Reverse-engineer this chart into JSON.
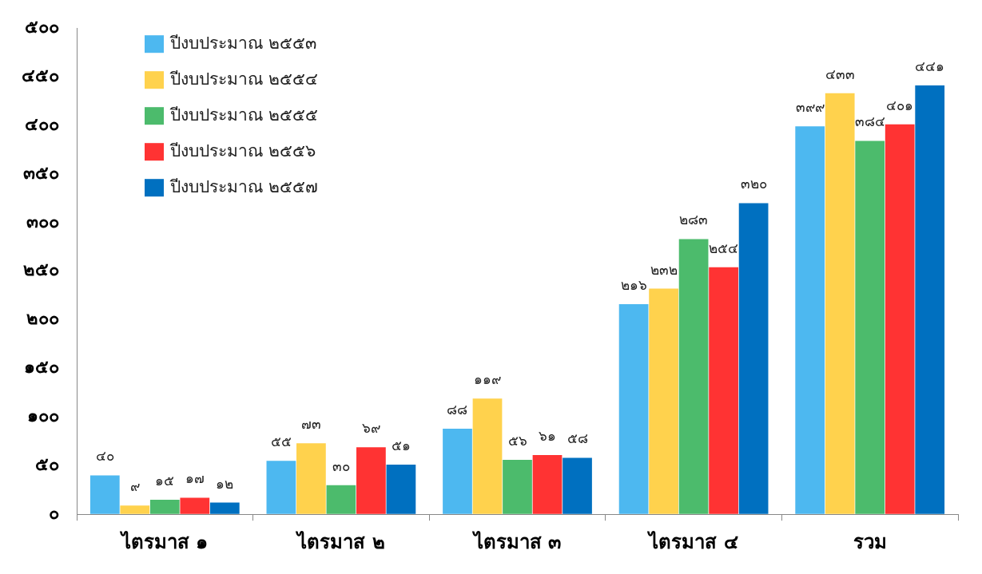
{
  "chart_data": {
    "type": "bar",
    "categories": [
      "ไตรมาส ๑",
      "ไตรมาส ๒",
      "ไตรมาส ๓",
      "ไตรมาส ๔",
      "รวม"
    ],
    "series": [
      {
        "name": "ปีงบประมาณ ๒๕๕๓",
        "color": "#4db8f0",
        "values": [
          40,
          55,
          88,
          216,
          399
        ],
        "value_labels": [
          "๔๐",
          "๕๕",
          "๘๘",
          "๒๑๖",
          "๓๙๙"
        ]
      },
      {
        "name": "ปีงบประมาณ ๒๕๕๔",
        "color": "#ffd24d",
        "values": [
          9,
          73,
          119,
          232,
          433
        ],
        "value_labels": [
          "๙",
          "๗๓",
          "๑๑๙",
          "๒๓๒",
          "๔๓๓"
        ]
      },
      {
        "name": "ปีงบประมาณ ๒๕๕๕",
        "color": "#4cbb6c",
        "values": [
          15,
          30,
          56,
          283,
          384
        ],
        "value_labels": [
          "๑๕",
          "๓๐",
          "๕๖",
          "๒๘๓",
          "๓๘๔"
        ]
      },
      {
        "name": "ปีงบประมาณ ๒๕๕๖",
        "color": "#ff3333",
        "values": [
          17,
          69,
          61,
          254,
          401
        ],
        "value_labels": [
          "๑๗",
          "๖๙",
          "๖๑",
          "๒๕๔",
          "๔๐๑"
        ]
      },
      {
        "name": "ปีงบประมาณ ๒๕๕๗",
        "color": "#0070c0",
        "values": [
          12,
          51,
          58,
          320,
          441
        ],
        "value_labels": [
          "๑๒",
          "๕๑",
          "๕๘",
          "๓๒๐",
          "๔๔๑"
        ]
      }
    ],
    "ylim": [
      0,
      500
    ],
    "yticks": [
      {
        "value": 0,
        "label": "๐"
      },
      {
        "value": 50,
        "label": "๕๐"
      },
      {
        "value": 100,
        "label": "๑๐๐"
      },
      {
        "value": 150,
        "label": "๑๕๐"
      },
      {
        "value": 200,
        "label": "๒๐๐"
      },
      {
        "value": 250,
        "label": "๒๕๐"
      },
      {
        "value": 300,
        "label": "๓๐๐"
      },
      {
        "value": 350,
        "label": "๓๕๐"
      },
      {
        "value": 400,
        "label": "๔๐๐"
      },
      {
        "value": 450,
        "label": "๔๕๐"
      },
      {
        "value": 500,
        "label": "๕๐๐"
      }
    ],
    "grid": false,
    "legend": "top left"
  }
}
